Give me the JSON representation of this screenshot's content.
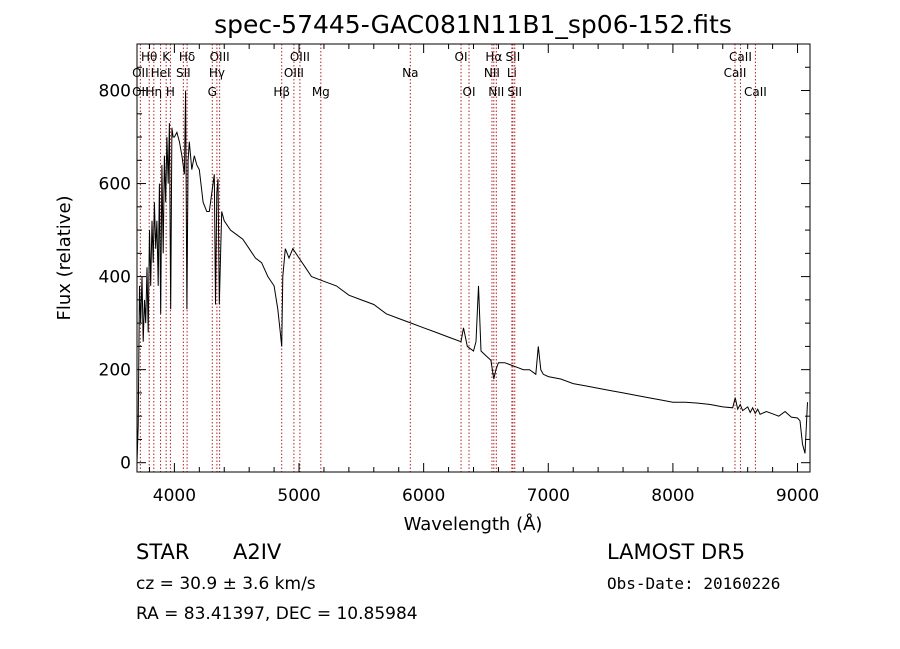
{
  "chart_data": {
    "type": "line",
    "title": "spec-57445-GAC081N11B1_sp06-152.fits",
    "xlabel": "Wavelength (Å)",
    "ylabel": "Flux (relative)",
    "xlim": [
      3700,
      9100
    ],
    "ylim": [
      -20,
      900
    ],
    "x_ticks": [
      4000,
      5000,
      6000,
      7000,
      8000,
      9000
    ],
    "y_ticks": [
      0,
      200,
      400,
      600,
      800
    ],
    "grid": false,
    "legend": "none",
    "colors": {
      "spectrum": "#000000",
      "lines": "#b22222",
      "axes": "#000000"
    },
    "series": [
      {
        "values_x": [
          3700,
          3710,
          3720,
          3730,
          3740,
          3750,
          3760,
          3770,
          3780,
          3790,
          3800,
          3810,
          3820,
          3830,
          3840,
          3850,
          3860,
          3870,
          3880,
          3890,
          3900,
          3910,
          3920,
          3930,
          3940,
          3950,
          3960,
          3970,
          3980,
          3990,
          4000,
          4020,
          4040,
          4060,
          4080,
          4090,
          4100,
          4110,
          4120,
          4140,
          4160,
          4180,
          4200,
          4230,
          4260,
          4280,
          4300,
          4320,
          4330,
          4340,
          4350,
          4360,
          4380,
          4400,
          4450,
          4500,
          4550,
          4600,
          4650,
          4700,
          4750,
          4800,
          4830,
          4850,
          4861,
          4870,
          4890,
          4920,
          4950,
          5000,
          5050,
          5100,
          5200,
          5300,
          5400,
          5500,
          5600,
          5700,
          5800,
          5900,
          6000,
          6100,
          6200,
          6300,
          6320,
          6350,
          6400,
          6420,
          6440,
          6460,
          6500,
          6540,
          6563,
          6580,
          6600,
          6650,
          6700,
          6750,
          6800,
          6850,
          6900,
          6920,
          6940,
          6960,
          7000,
          7100,
          7200,
          7300,
          7400,
          7500,
          7600,
          7700,
          7800,
          7900,
          8000,
          8100,
          8200,
          8300,
          8400,
          8480,
          8500,
          8520,
          8540,
          8560,
          8600,
          8620,
          8640,
          8660,
          8680,
          8700,
          8750,
          8800,
          8850,
          8900,
          8950,
          9000,
          9020,
          9040,
          9060,
          9080
        ],
        "values_y": [
          0,
          80,
          380,
          300,
          400,
          260,
          350,
          300,
          420,
          280,
          500,
          380,
          520,
          430,
          560,
          460,
          520,
          380,
          600,
          320,
          640,
          450,
          660,
          560,
          700,
          600,
          730,
          330,
          720,
          700,
          700,
          710,
          690,
          660,
          620,
          800,
          330,
          650,
          690,
          630,
          660,
          640,
          630,
          560,
          540,
          540,
          580,
          620,
          340,
          580,
          610,
          340,
          540,
          520,
          500,
          490,
          480,
          460,
          440,
          430,
          400,
          380,
          330,
          280,
          250,
          400,
          460,
          440,
          460,
          440,
          420,
          400,
          390,
          380,
          360,
          350,
          340,
          320,
          310,
          300,
          290,
          280,
          270,
          260,
          290,
          250,
          240,
          260,
          380,
          240,
          230,
          220,
          180,
          200,
          215,
          215,
          210,
          205,
          200,
          200,
          190,
          250,
          200,
          190,
          185,
          180,
          170,
          165,
          160,
          155,
          150,
          145,
          140,
          135,
          130,
          130,
          128,
          125,
          120,
          118,
          140,
          115,
          125,
          112,
          120,
          108,
          118,
          106,
          115,
          104,
          110,
          105,
          100,
          110,
          98,
          96,
          90,
          40,
          20,
          130
        ]
      }
    ],
    "spectral_lines": [
      {
        "label": "Hθ",
        "wavelength": 3798,
        "row": 1
      },
      {
        "label": "K",
        "wavelength": 3934,
        "row": 1
      },
      {
        "label": "Hδ",
        "wavelength": 4102,
        "row": 1
      },
      {
        "label": "OIII",
        "wavelength": 4363,
        "row": 1
      },
      {
        "label": "OIII",
        "wavelength": 5007,
        "row": 1
      },
      {
        "label": "OI",
        "wavelength": 6300,
        "row": 1
      },
      {
        "label": "Hα",
        "wavelength": 6563,
        "row": 1
      },
      {
        "label": "SII",
        "wavelength": 6716,
        "row": 1
      },
      {
        "label": "CaII",
        "wavelength": 8542,
        "row": 1
      },
      {
        "label": "OII",
        "wavelength": 3727,
        "row": 2
      },
      {
        "label": "HeI",
        "wavelength": 3889,
        "row": 2
      },
      {
        "label": "SII",
        "wavelength": 4072,
        "row": 2
      },
      {
        "label": "Hγ",
        "wavelength": 4341,
        "row": 2
      },
      {
        "label": "OIII",
        "wavelength": 4959,
        "row": 2
      },
      {
        "label": "Na",
        "wavelength": 5893,
        "row": 2
      },
      {
        "label": "NII",
        "wavelength": 6548,
        "row": 2
      },
      {
        "label": "Li",
        "wavelength": 6708,
        "row": 2
      },
      {
        "label": "CaII",
        "wavelength": 8498,
        "row": 2
      },
      {
        "label": "OII",
        "wavelength": 3727,
        "row": 3
      },
      {
        "label": "Hη",
        "wavelength": 3835,
        "row": 3
      },
      {
        "label": "H",
        "wavelength": 3968,
        "row": 3
      },
      {
        "label": "G",
        "wavelength": 4304,
        "row": 3
      },
      {
        "label": "Hβ",
        "wavelength": 4861,
        "row": 3
      },
      {
        "label": "Mg",
        "wavelength": 5175,
        "row": 3
      },
      {
        "label": "OI",
        "wavelength": 6364,
        "row": 3
      },
      {
        "label": "NII",
        "wavelength": 6583,
        "row": 3
      },
      {
        "label": "SII",
        "wavelength": 6731,
        "row": 3
      },
      {
        "label": "CaII",
        "wavelength": 8662,
        "row": 3
      }
    ]
  },
  "info": {
    "object_class": "STAR",
    "subclass": "A2IV",
    "survey": "LAMOST  DR5",
    "cz": "cz = 30.9 ± 3.6 km/s",
    "obs_date": "Obs-Date: 20160226",
    "coords": "RA =  83.41397, DEC =  10.85984"
  }
}
